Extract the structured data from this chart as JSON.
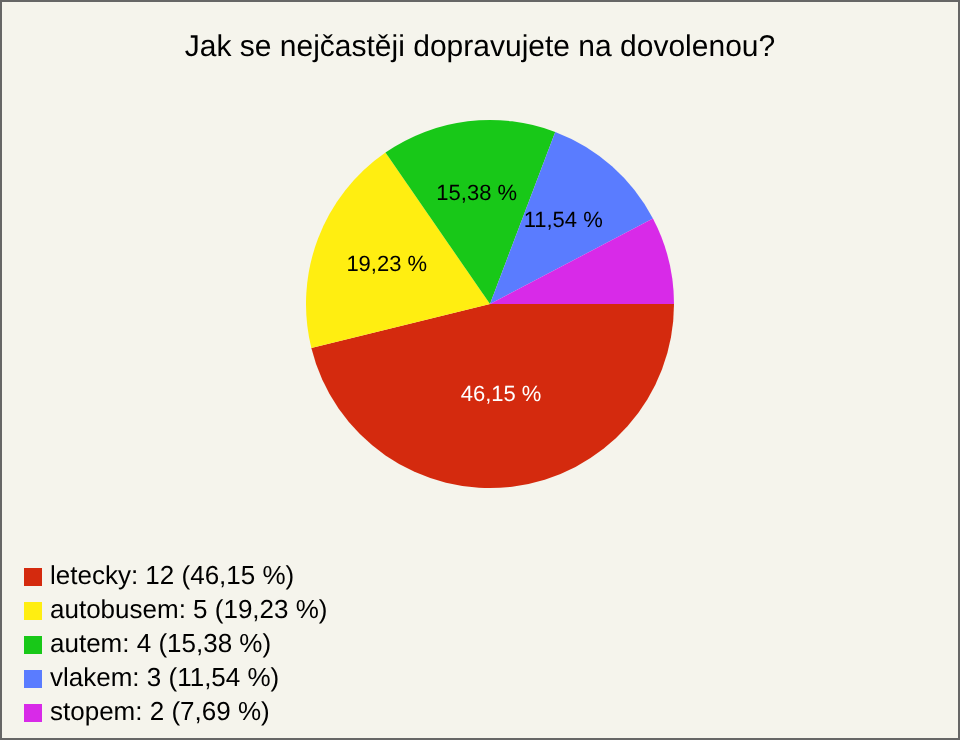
{
  "chart_data": {
    "type": "pie",
    "title": "Jak se nejčastěji dopravujete na dovolenou?",
    "categories": [
      "letecky: 12 (46,15 %)",
      "autobusem: 5 (19,23 %)",
      "autem: 4 (15,38 %)",
      "vlakem: 3 (11,54 %)",
      "stopem: 2 (7,69 %)"
    ],
    "values": [
      46.15,
      19.23,
      15.38,
      11.54,
      7.69
    ],
    "value_labels": [
      "46,15 %",
      "19,23 %",
      "15,38 %",
      "11,54 %",
      null
    ],
    "colors": [
      "#d42a0e",
      "#ffee11",
      "#18c818",
      "#5a7cff",
      "#d82ae8"
    ],
    "legend": "bottom left"
  }
}
